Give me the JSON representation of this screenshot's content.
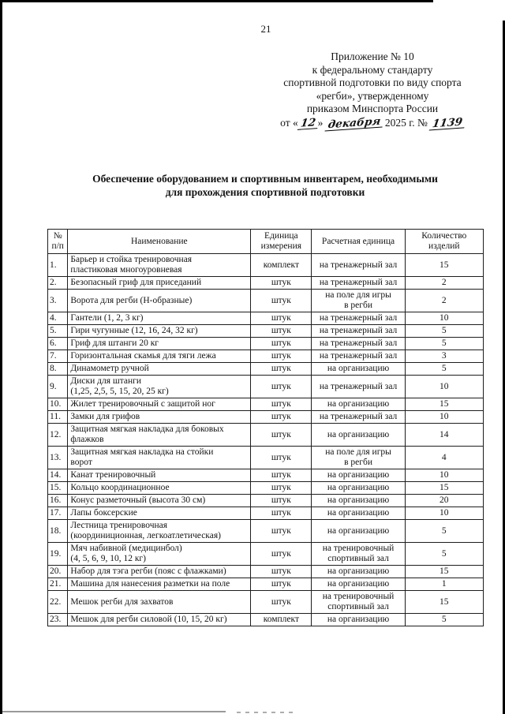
{
  "page": {
    "number": "21"
  },
  "appendix": {
    "lines": [
      "Приложение № 10",
      "к федеральному стандарту",
      "спортивной подготовки по виду спорта",
      "«регби», утвержденному",
      "приказом Минспорта России"
    ],
    "date": {
      "prefix": "от «",
      "day": "12",
      "after_day": "»",
      "month": "декабря",
      "year_part": "2025 г. №",
      "number": "1139"
    }
  },
  "title": "Обеспечение оборудованием и спортивным инвентарем, необходимыми\nдля прохождения спортивной подготовки",
  "table": {
    "headers": [
      "№\nп/п",
      "Наименование",
      "Единица\nизмерения",
      "Расчетная единица",
      "Количество\nизделий"
    ],
    "rows": [
      [
        "1.",
        "Барьер и стойка тренировочная\nпластиковая многоуровневая",
        "комплект",
        "на тренажерный зал",
        "15"
      ],
      [
        "2.",
        "Безопасный гриф для приседаний",
        "штук",
        "на тренажерный зал",
        "2"
      ],
      [
        "3.",
        "Ворота для регби (Н-образные)",
        "штук",
        "на поле для игры\nв регби",
        "2"
      ],
      [
        "4.",
        "Гантели (1, 2, 3 кг)",
        "штук",
        "на тренажерный зал",
        "10"
      ],
      [
        "5.",
        "Гири чугунные (12, 16, 24, 32 кг)",
        "штук",
        "на тренажерный зал",
        "5"
      ],
      [
        "6.",
        "Гриф для штанги 20 кг",
        "штук",
        "на тренажерный зал",
        "5"
      ],
      [
        "7.",
        "Горизонтальная скамья для тяги лежа",
        "штук",
        "на тренажерный зал",
        "3"
      ],
      [
        "8.",
        "Динамометр ручной",
        "штук",
        "на организацию",
        "5"
      ],
      [
        "9.",
        "Диски для штанги\n(1,25, 2,5, 5, 15, 20, 25 кг)",
        "штук",
        "на тренажерный зал",
        "10"
      ],
      [
        "10.",
        "Жилет тренировочный с защитой ног",
        "штук",
        "на организацию",
        "15"
      ],
      [
        "11.",
        "Замки для грифов",
        "штук",
        "на тренажерный зал",
        "10"
      ],
      [
        "12.",
        "Защитная мягкая накладка для боковых\nфлажков",
        "штук",
        "на организацию",
        "14"
      ],
      [
        "13.",
        "Защитная мягкая накладка на стойки\nворот",
        "штук",
        "на поле для игры\nв регби",
        "4"
      ],
      [
        "14.",
        "Канат тренировочный",
        "штук",
        "на организацию",
        "10"
      ],
      [
        "15.",
        "Кольцо координационное",
        "штук",
        "на организацию",
        "15"
      ],
      [
        "16.",
        "Конус разметочный (высота 30 см)",
        "штук",
        "на организацию",
        "20"
      ],
      [
        "17.",
        "Лапы боксерские",
        "штук",
        "на организацию",
        "10"
      ],
      [
        "18.",
        "Лестница тренировочная\n(координиционная, легкоатлетическая)",
        "штук",
        "на организацию",
        "5"
      ],
      [
        "19.",
        "Мяч набивной (медицинбол)\n(4, 5, 6, 9, 10, 12 кг)",
        "штук",
        "на тренировочный\nспортивный зал",
        "5"
      ],
      [
        "20.",
        "Набор для тэга регби (пояс с флажками)",
        "штук",
        "на организацию",
        "15"
      ],
      [
        "21.",
        "Машина для нанесения разметки на поле",
        "штук",
        "на организацию",
        "1"
      ],
      [
        "22.",
        "Мешок регби для захватов",
        "штук",
        "на тренировочный\nспортивный зал",
        "15"
      ],
      [
        "23.",
        "Мешок для регби силовой (10, 15, 20 кг)",
        "комплект",
        "на организацию",
        "5"
      ]
    ]
  },
  "colors": {
    "ink": "#141414",
    "paper": "#ffffff",
    "scan_edge": "#000000",
    "smudge": "#9a9a9a"
  }
}
